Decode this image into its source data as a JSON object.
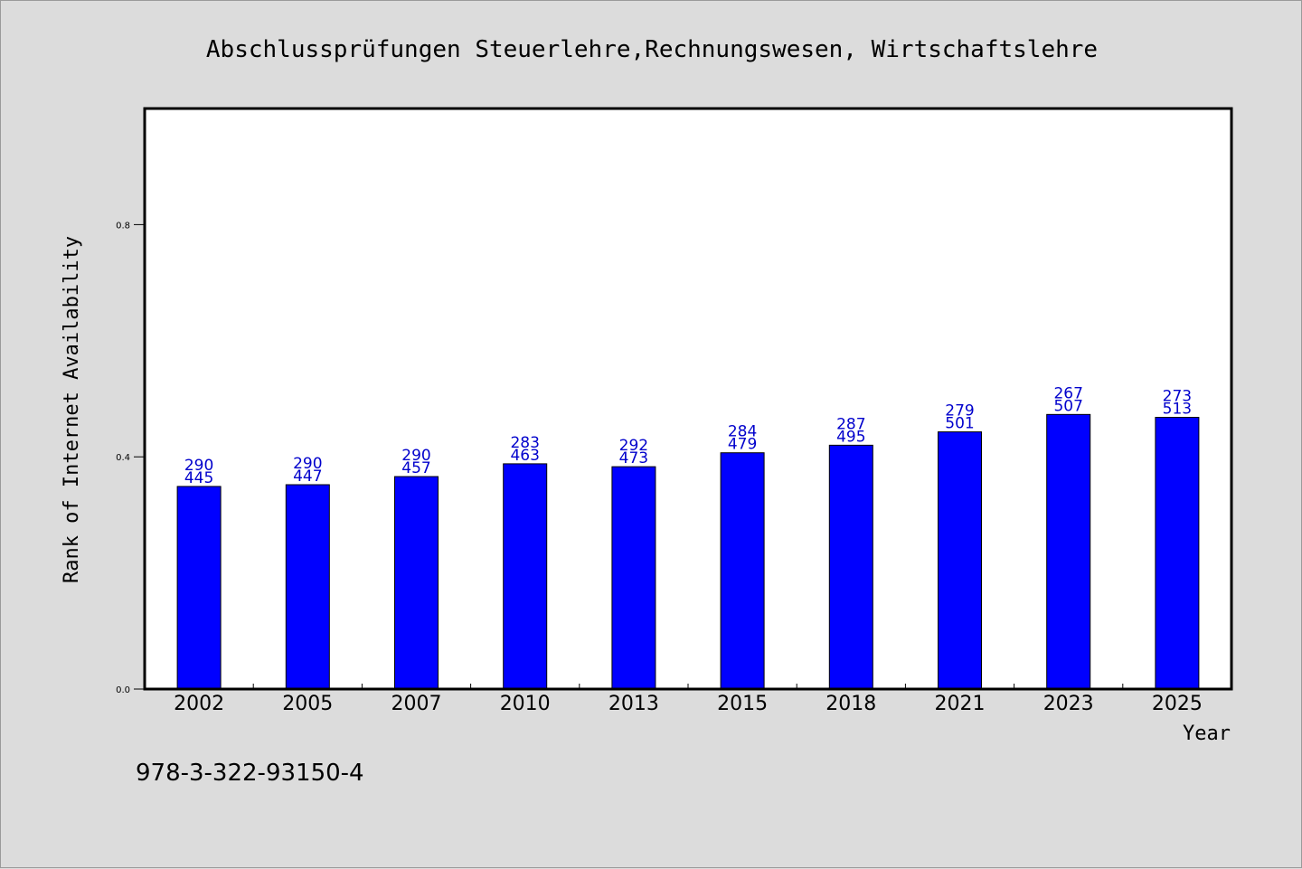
{
  "chart_data": {
    "type": "bar",
    "title": "Abschlussprüfungen Steuerlehre,Rechnungswesen, Wirtschaftslehre",
    "xlabel": "Year",
    "ylabel": "Rank of Internet Availability",
    "ylim": [
      0,
      1.0
    ],
    "yticks": [
      "0.0",
      "0.4",
      "0.8"
    ],
    "categories": [
      "2002",
      "2005",
      "2007",
      "2010",
      "2013",
      "2015",
      "2018",
      "2021",
      "2023",
      "2025"
    ],
    "values": [
      0.349,
      0.352,
      0.366,
      0.388,
      0.383,
      0.407,
      0.42,
      0.443,
      0.473,
      0.468
    ],
    "label_top": [
      "290",
      "290",
      "290",
      "283",
      "292",
      "284",
      "287",
      "279",
      "267",
      "273"
    ],
    "label_bottom": [
      "445",
      "447",
      "457",
      "463",
      "473",
      "479",
      "495",
      "501",
      "507",
      "513"
    ],
    "grid": false,
    "bar_color": "#0000ff",
    "label_color": "#0000cc"
  },
  "footer_code": "978-3-322-93150-4"
}
